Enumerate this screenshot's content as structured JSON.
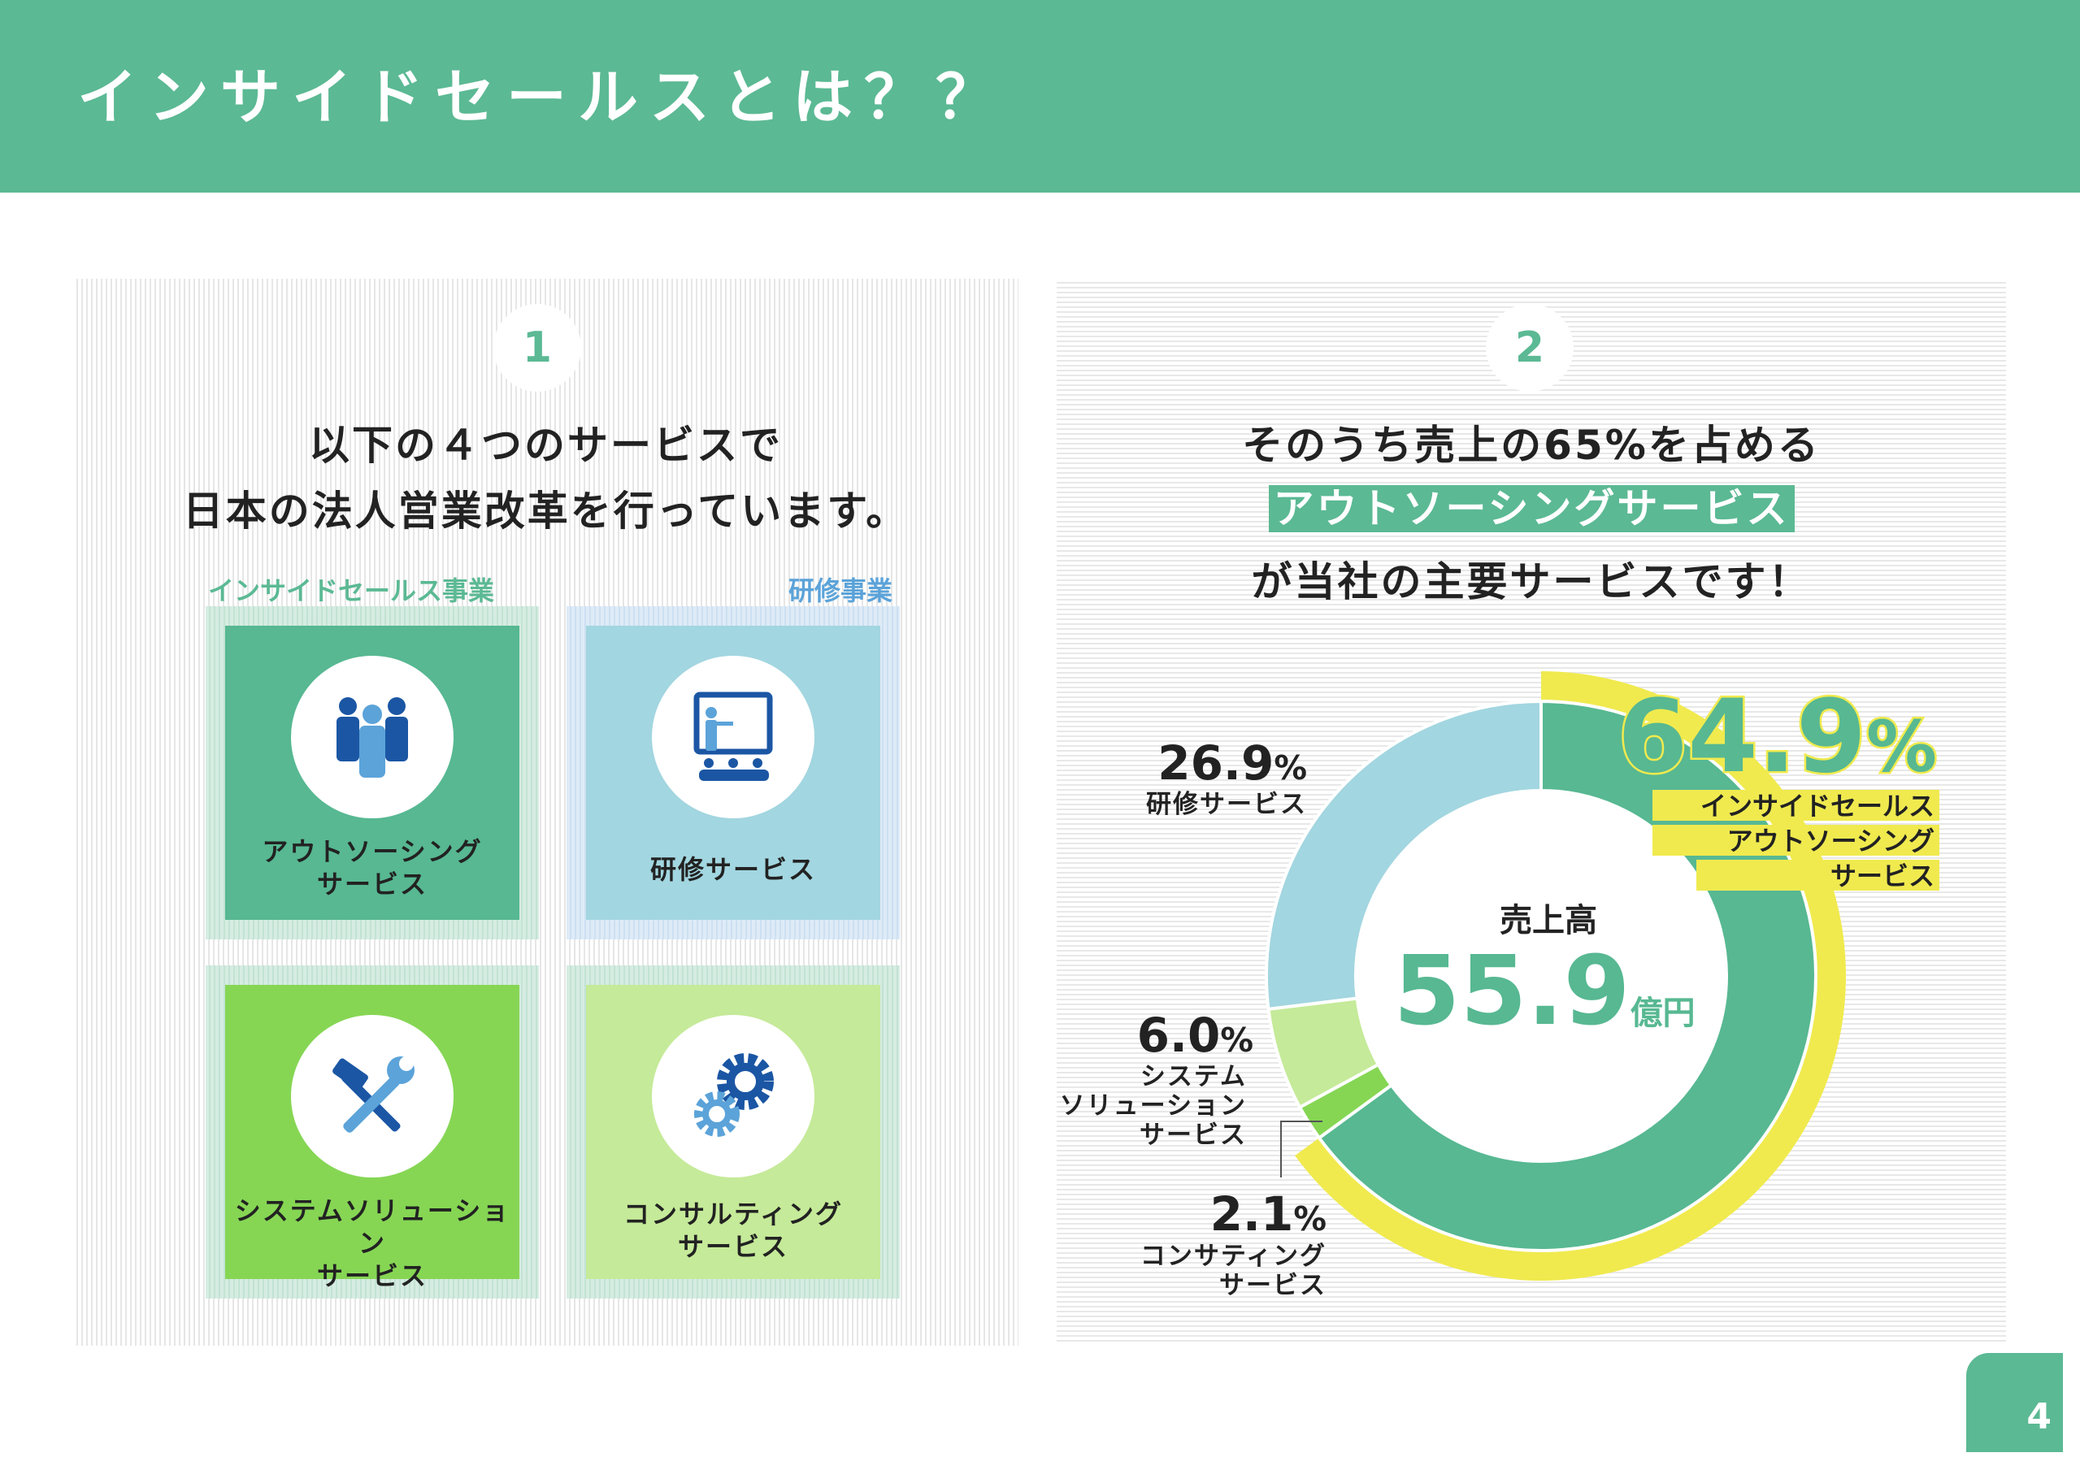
{
  "header": {
    "title": "インサイドセールスとは？？"
  },
  "left": {
    "number": "1",
    "heading": [
      "以下の４つのサービスで",
      "日本の法人営業改革を行っています。"
    ],
    "categories": {
      "inside_sales": "インサイドセールス事業",
      "training": "研修事業"
    },
    "cards": [
      {
        "label": [
          "アウトソーシング",
          "サービス"
        ],
        "icon": "people-group-icon",
        "color": "#57b892"
      },
      {
        "label": [
          "研修サービス"
        ],
        "icon": "presentation-icon",
        "color": "#a2d6e0"
      },
      {
        "label": [
          "システムソリューション",
          "サービス"
        ],
        "icon": "tools-icon",
        "color": "#86d654"
      },
      {
        "label": [
          "コンサルティング",
          "サービス"
        ],
        "icon": "gears-icon",
        "color": "#c5ea99"
      }
    ]
  },
  "right": {
    "number": "2",
    "heading_line1": "そのうち売上の65%を占める",
    "heading_highlight": "アウトソーシングサービス",
    "heading_line3": "が当社の主要サービスです！"
  },
  "chart_data": {
    "type": "pie",
    "subtype": "donut",
    "center_label": "売上高",
    "center_value": "55.9",
    "center_unit": "億円",
    "slices": [
      {
        "name": "インサイドセールスアウトソーシングサービス",
        "label_lines": [
          "インサイドセールス",
          "アウトソーシング",
          "サービス"
        ],
        "value": 64.9,
        "display": "64.9",
        "color": "#57b892",
        "highlight": true
      },
      {
        "name": "コンサティングサービス",
        "label_lines": [
          "コンサティング",
          "サービス"
        ],
        "value": 2.1,
        "display": "2.1",
        "color": "#86d654"
      },
      {
        "name": "システムソリューションサービス",
        "label_lines": [
          "システム",
          "ソリューション",
          "サービス"
        ],
        "value": 6.0,
        "display": "6.0",
        "color": "#c5ea99"
      },
      {
        "name": "研修サービス",
        "label_lines": [
          "研修サービス"
        ],
        "value": 26.9,
        "display": "26.9",
        "color": "#a2d6e0"
      }
    ],
    "percent_sign": "%",
    "highlight_color": "#f0ea4f"
  },
  "page_number": "4"
}
